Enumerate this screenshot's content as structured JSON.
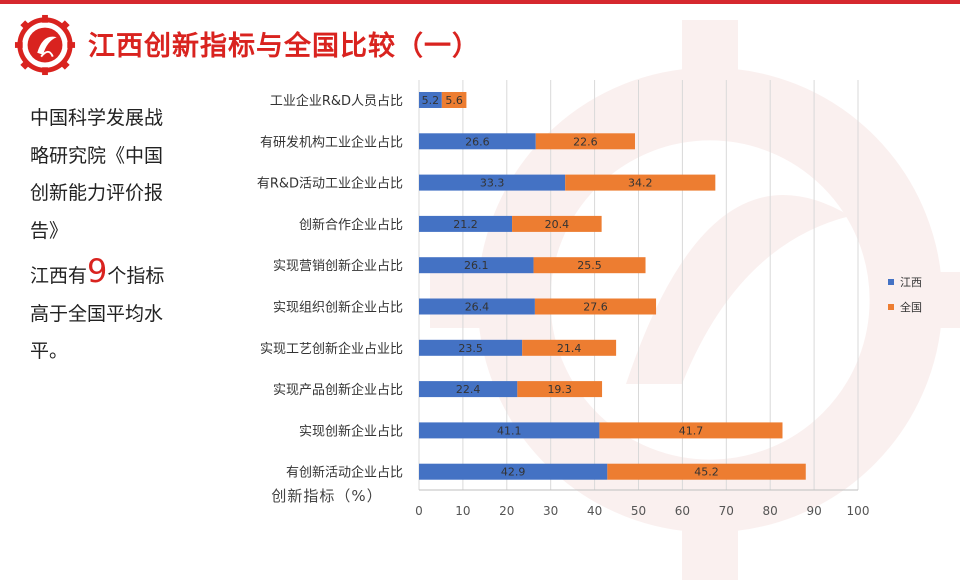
{
  "title": "江西创新指标与全国比较（一）",
  "side_text": {
    "line1": "中国科学发展战略研究院《中国创新能力评价报告》",
    "line2_prefix": "江西有",
    "line2_number": "9",
    "line2_suffix": "个指标高于全国平均水平。"
  },
  "colors": {
    "accent": "#d9231f",
    "jiangxi": "#4472c4",
    "national": "#ed7d31"
  },
  "icons": {
    "logo": "gear-leaf-logo-icon"
  },
  "chart_data": {
    "type": "bar",
    "orientation": "horizontal",
    "stacked": true,
    "categories": [
      "工业企业R&D人员占比",
      "有研发机构工业企业占比",
      "有R&D活动工业企业占比",
      "创新合作企业占比",
      "实现营销创新企业占比",
      "实现组织创新企业占比",
      "实现工艺创新企业占业比",
      "实现产品创新企业占比",
      "实现创新企业占比",
      "有创新活动企业占比"
    ],
    "series": [
      {
        "name": "江西",
        "values": [
          5.2,
          26.6,
          33.3,
          21.2,
          26.1,
          26.4,
          23.5,
          22.4,
          41.1,
          42.9
        ]
      },
      {
        "name": "全国",
        "values": [
          5.6,
          22.6,
          34.2,
          20.4,
          25.5,
          27.6,
          21.4,
          19.3,
          41.7,
          45.2
        ]
      }
    ],
    "xlabel": "创新指标（%）",
    "xlim": [
      0,
      100
    ],
    "xticks": [
      0,
      10,
      20,
      30,
      40,
      50,
      60,
      70,
      80,
      90,
      100
    ],
    "grid": true,
    "legend_position": "right"
  }
}
